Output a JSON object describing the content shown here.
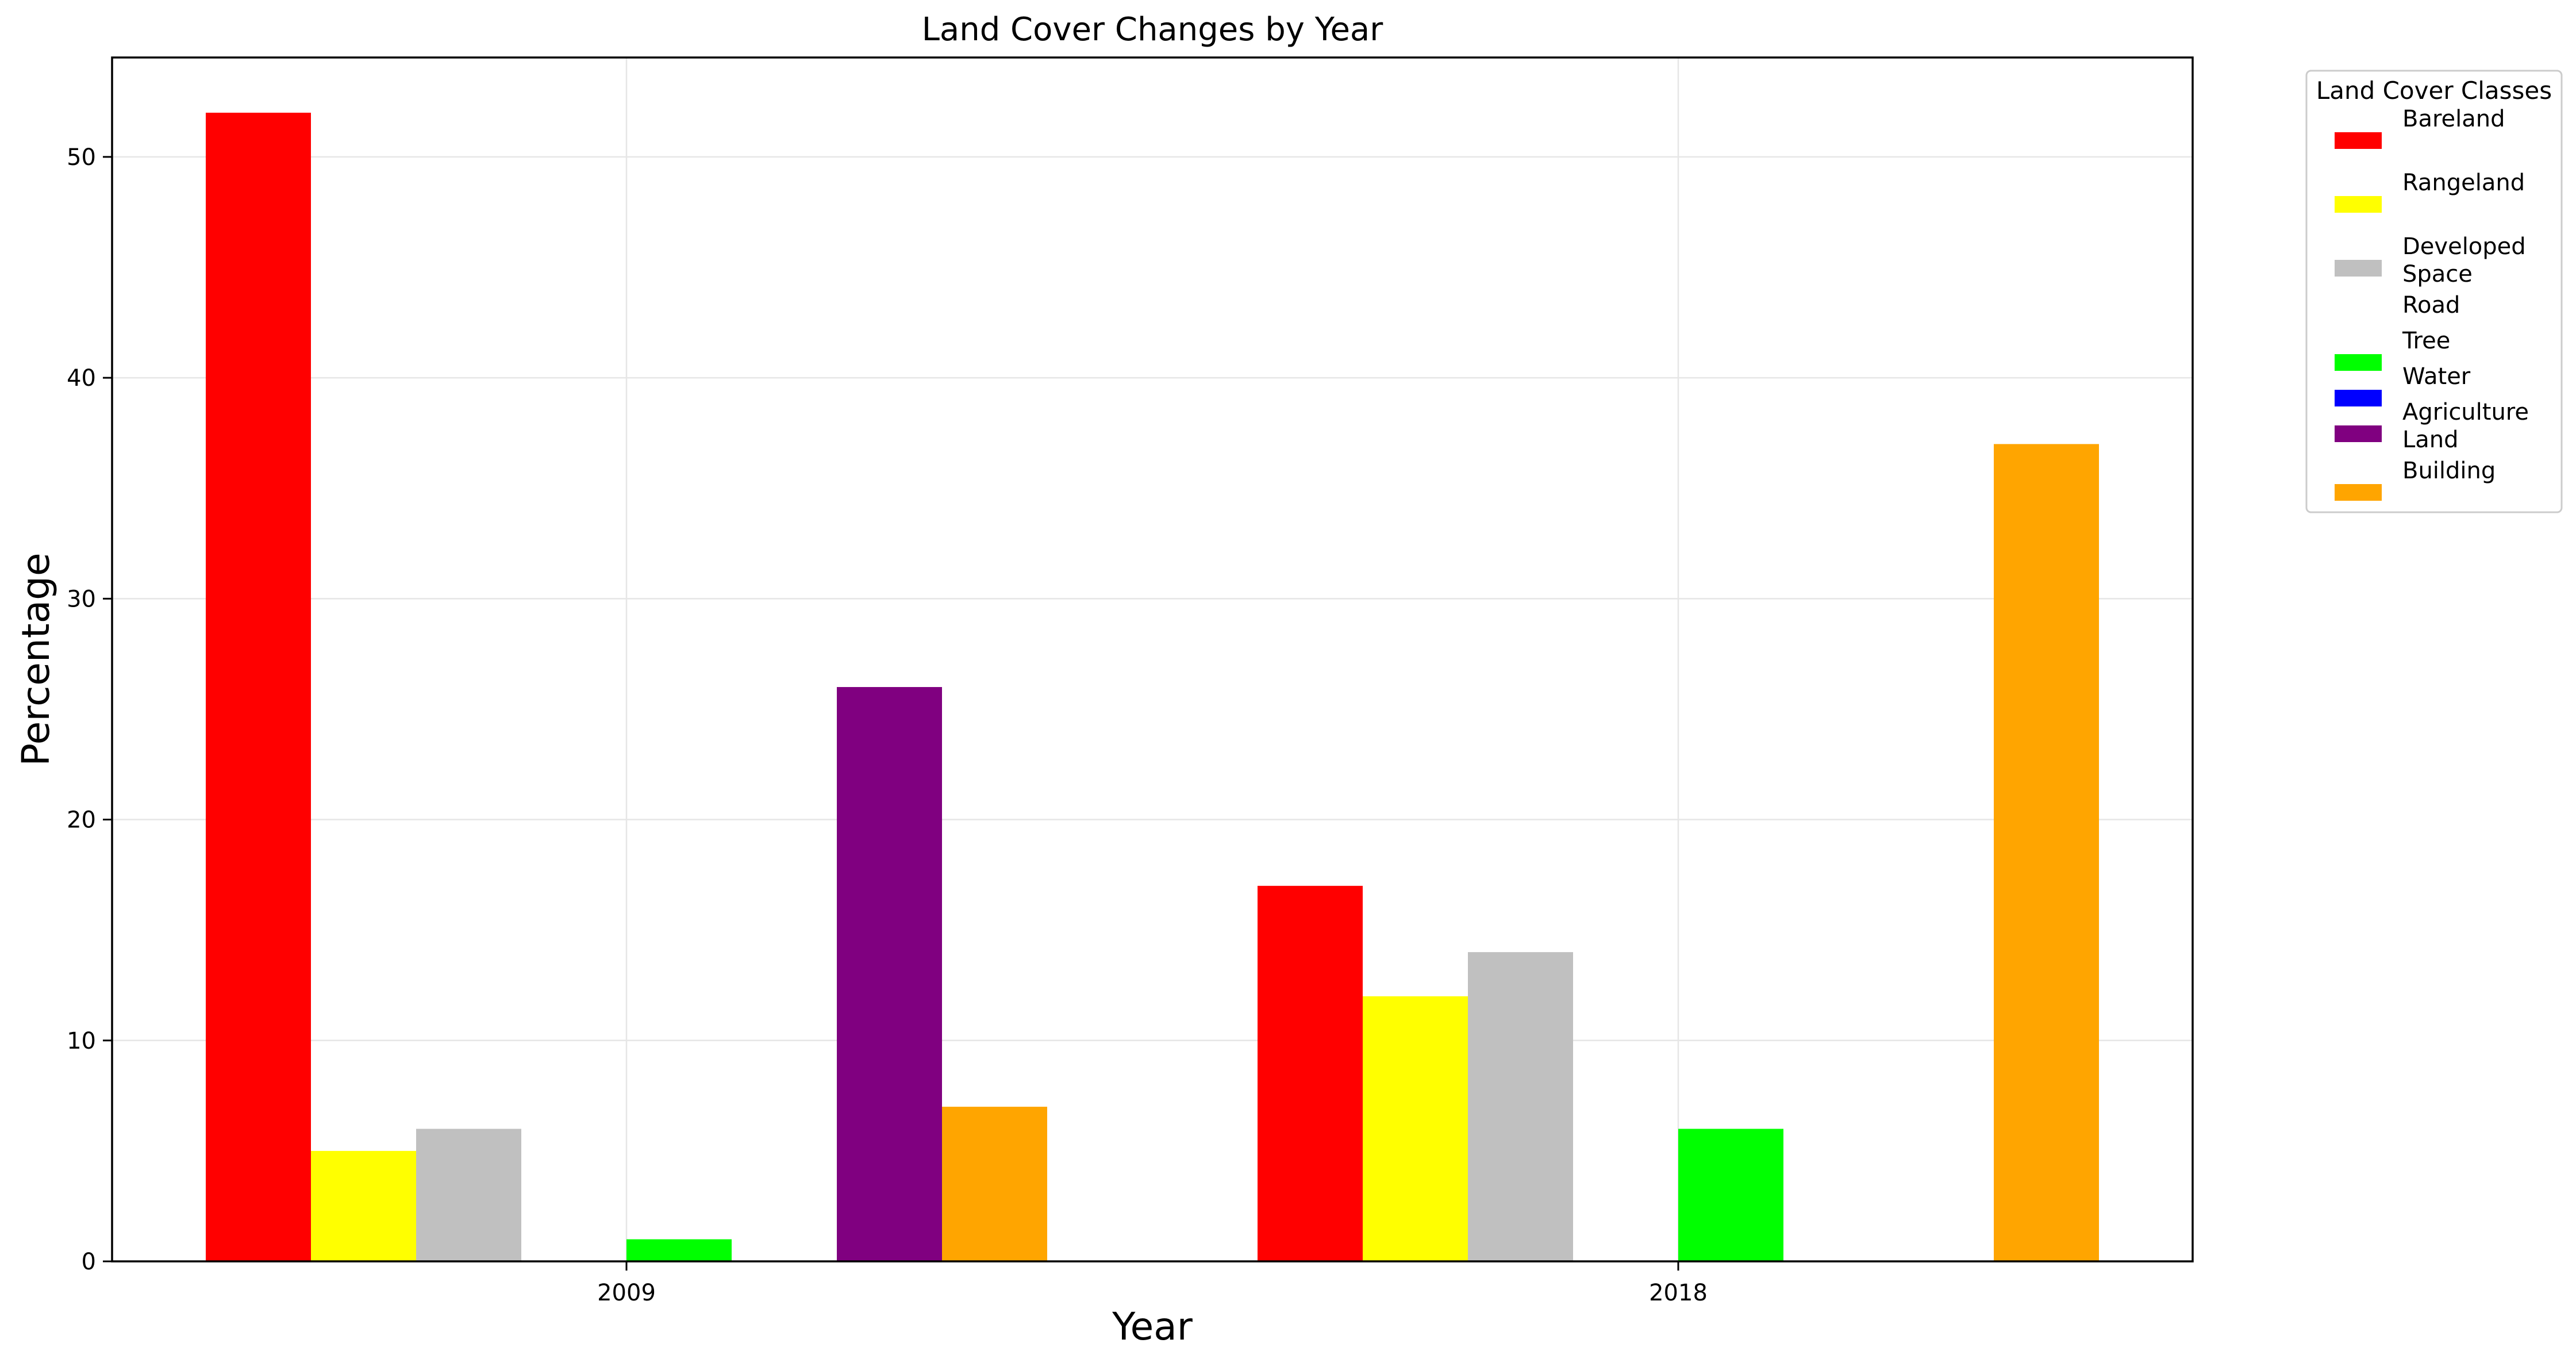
{
  "chart_data": {
    "type": "bar",
    "title": "Land Cover Changes by Year",
    "xlabel": "Year",
    "ylabel": "Percentage",
    "categories": [
      "2009",
      "2018"
    ],
    "ylim": [
      0,
      54.5
    ],
    "yticks": [
      0,
      10,
      20,
      30,
      40,
      50
    ],
    "grid": true,
    "legend": {
      "title": "Land Cover Classes",
      "placement": "outside-right"
    },
    "series": [
      {
        "name": "Bareland",
        "label": "Bareland",
        "color": "#ff0000",
        "values": [
          52,
          17
        ]
      },
      {
        "name": "Rangeland",
        "label": "Rangeland",
        "color": "#ffff00",
        "values": [
          5,
          12
        ]
      },
      {
        "name": "Developed Space",
        "label": "Developed\nSpace",
        "color": "#c0c0c0",
        "values": [
          6,
          14
        ]
      },
      {
        "name": "Road",
        "label": "Road",
        "color": "#ffffff",
        "values": [
          0,
          0
        ]
      },
      {
        "name": "Tree",
        "label": "Tree",
        "color": "#00ff00",
        "values": [
          1,
          6
        ]
      },
      {
        "name": "Water",
        "label": "Water",
        "color": "#0000ff",
        "values": [
          0,
          0
        ]
      },
      {
        "name": "Agriculture Land",
        "label": "Agriculture\nLand",
        "color": "#800080",
        "values": [
          26,
          0
        ]
      },
      {
        "name": "Building",
        "label": "Building",
        "color": "#ffa500",
        "values": [
          7,
          37
        ]
      }
    ]
  }
}
